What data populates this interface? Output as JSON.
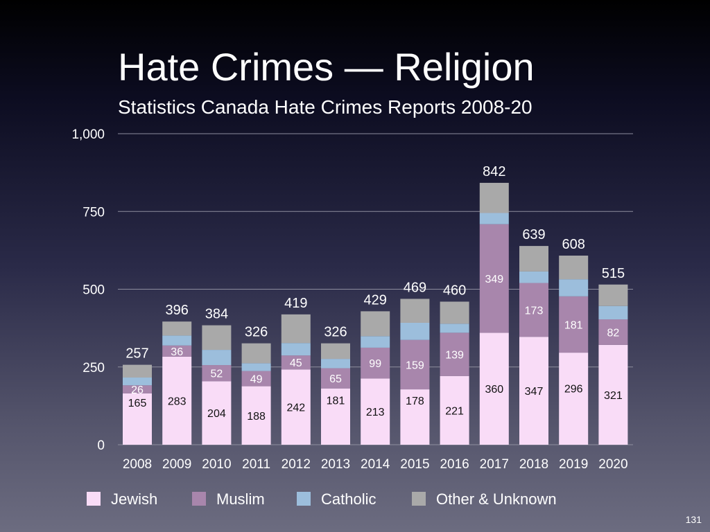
{
  "slide": {
    "title": "Hate Crimes — Religion",
    "subtitle": "Statistics Canada Hate Crimes Reports 2008-20",
    "page_number": "131"
  },
  "chart_data": {
    "type": "bar",
    "stacked": true,
    "categories": [
      "2008",
      "2009",
      "2010",
      "2011",
      "2012",
      "2013",
      "2014",
      "2015",
      "2016",
      "2017",
      "2018",
      "2019",
      "2020"
    ],
    "series": [
      {
        "name": "Jewish",
        "color": "#f9dcf7",
        "values": [
          165,
          283,
          204,
          188,
          242,
          181,
          213,
          178,
          221,
          360,
          347,
          296,
          321
        ]
      },
      {
        "name": "Muslim",
        "color": "#a886ac",
        "values": [
          26,
          36,
          52,
          49,
          45,
          65,
          99,
          159,
          139,
          349,
          173,
          181,
          82
        ]
      },
      {
        "name": "Catholic",
        "color": "#9cbedc",
        "values": [
          25,
          32,
          49,
          25,
          40,
          30,
          37,
          55,
          29,
          36,
          37,
          55,
          43
        ]
      },
      {
        "name": "Other & Unknown",
        "color": "#a9a9a9",
        "values": [
          41,
          45,
          79,
          64,
          92,
          50,
          80,
          77,
          71,
          97,
          82,
          76,
          69
        ]
      }
    ],
    "totals": [
      257,
      396,
      384,
      326,
      419,
      326,
      429,
      469,
      460,
      842,
      639,
      608,
      515
    ],
    "data_labels": {
      "Jewish": [
        "165",
        "283",
        "204",
        "188",
        "242",
        "181",
        "213",
        "178",
        "221",
        "360",
        "347",
        "296",
        "321"
      ],
      "Muslim": [
        "26",
        "36",
        "52",
        "49",
        "45",
        "65",
        "99",
        "159",
        "139",
        "349",
        "173",
        "181",
        "82"
      ]
    },
    "ylim": [
      0,
      1000
    ],
    "yticks": [
      0,
      250,
      500,
      750,
      1000
    ],
    "ytick_labels": [
      "0",
      "250",
      "500",
      "750",
      "1,000"
    ],
    "grid": true,
    "legend_position": "bottom"
  }
}
